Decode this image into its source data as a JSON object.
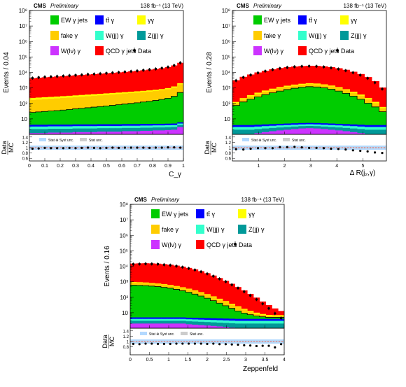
{
  "colors": {
    "qcd": "#ff0000",
    "ew": "#00cc00",
    "fake": "#ffcc00",
    "diphoton": "#ffff00",
    "ttbar": "#0000ff",
    "wjj": "#33ffcc",
    "zjj": "#009999",
    "wlnu": "#cc33ff",
    "ratio_band": "#b3d9ff",
    "ratio_band_stat": "#cccccc",
    "ratio_line": "#ff0000",
    "edge": "#000000"
  },
  "legend_labels": {
    "ew": "EW γ jets",
    "ttbar": "tt̄ γ",
    "diphoton": "γγ",
    "fake": "fake γ",
    "wjj": "W(jj) γ",
    "zjj": "Z(jj) γ",
    "wlnu": "W(lν) γ",
    "qcd": "QCD γ jets",
    "data": "Data",
    "band_syst": "Stat ⊕ Syst unc.",
    "band_stat": "Stat unc."
  },
  "chart_data": [
    {
      "type": "area",
      "stacked": true,
      "log_scale": true,
      "cms_label": "CMS",
      "preliminary_label": "Preliminary",
      "lumi_label": "138 fb⁻¹ (13 TeV)",
      "ylabel": "Events / 0.04",
      "ratio_ylabel_top": "Data",
      "ratio_ylabel_bottom": "MC",
      "xlabel": "C_γ",
      "xlim": [
        0,
        1.0
      ],
      "x_ticks": [
        "0",
        "0.1",
        "0.2",
        "0.3",
        "0.4",
        "0.5",
        "0.6",
        "0.7",
        "0.8",
        "0.9",
        "1"
      ],
      "y_ticks": [
        "10",
        "10²",
        "10³",
        "10⁴",
        "10⁵",
        "10⁶",
        "10⁷",
        "10⁸"
      ],
      "ratio_ticks": [
        "0.6",
        "0.8",
        "1",
        "1.2",
        "1.4"
      ],
      "ylim": [
        1,
        100000000
      ],
      "ratio_ylim": [
        0.5,
        1.5
      ],
      "x": [
        0.02,
        0.06,
        0.1,
        0.14,
        0.18,
        0.22,
        0.26,
        0.3,
        0.34,
        0.38,
        0.42,
        0.46,
        0.5,
        0.54,
        0.58,
        0.62,
        0.66,
        0.7,
        0.74,
        0.78,
        0.82,
        0.86,
        0.9,
        0.94,
        0.98
      ],
      "series": [
        {
          "key": "wlnu",
          "values": [
            1.2,
            1.2,
            1.2,
            1.3,
            1.3,
            1.3,
            1.3,
            1.4,
            1.4,
            1.4,
            1.4,
            1.5,
            1.5,
            1.5,
            1.5,
            1.6,
            1.6,
            1.6,
            1.7,
            1.7,
            1.8,
            1.8,
            1.9,
            2,
            3
          ]
        },
        {
          "key": "zjj",
          "values": [
            1,
            1,
            1,
            1,
            1,
            1,
            1,
            1,
            1,
            1,
            1,
            1,
            1,
            1,
            1,
            1,
            1,
            1,
            1,
            1,
            1,
            1,
            1,
            1,
            1
          ]
        },
        {
          "key": "wjj",
          "values": [
            1,
            1,
            1,
            1,
            1,
            1,
            1,
            1,
            1,
            1,
            1,
            1,
            1,
            1,
            1,
            1,
            1,
            1,
            1,
            1,
            1,
            1,
            1,
            1,
            1
          ]
        },
        {
          "key": "ttbar",
          "values": [
            1,
            1,
            1,
            1,
            1,
            1,
            1,
            1,
            1,
            1,
            1,
            1,
            1,
            1,
            1,
            1,
            1,
            1,
            1,
            1,
            1,
            1,
            1,
            1,
            1
          ]
        },
        {
          "key": "ew",
          "values": [
            22,
            24,
            26,
            28,
            30,
            33,
            36,
            40,
            44,
            48,
            53,
            58,
            64,
            70,
            78,
            86,
            95,
            105,
            118,
            132,
            150,
            175,
            210,
            280,
            500
          ]
        },
        {
          "key": "fake",
          "values": [
            140,
            148,
            156,
            165,
            175,
            186,
            198,
            210,
            224,
            238,
            252,
            268,
            285,
            302,
            320,
            340,
            362,
            386,
            412,
            440,
            475,
            520,
            600,
            760,
            1200
          ]
        },
        {
          "key": "diphoton",
          "values": [
            60,
            62,
            64,
            66,
            68,
            70,
            72,
            75,
            78,
            81,
            84,
            87,
            90,
            94,
            98,
            102,
            106,
            110,
            115,
            120,
            128,
            138,
            160,
            200,
            300
          ]
        },
        {
          "key": "qcd",
          "values": [
            4000,
            4300,
            4600,
            4900,
            5200,
            5500,
            5900,
            6200,
            6600,
            7000,
            7400,
            7900,
            8400,
            9000,
            9600,
            10300,
            11100,
            12000,
            13200,
            14500,
            16000,
            18000,
            21000,
            27000,
            40000
          ]
        }
      ],
      "data_points": [
        4300,
        4700,
        5100,
        5300,
        5600,
        5900,
        6300,
        6600,
        7000,
        7500,
        7900,
        8400,
        8900,
        9600,
        10100,
        10900,
        11700,
        12700,
        13900,
        15200,
        16900,
        19000,
        22300,
        28500,
        42000
      ],
      "ratio_points": [
        0.96,
        0.97,
        0.99,
        0.98,
        0.98,
        0.98,
        0.99,
        0.98,
        0.99,
        1.0,
        0.99,
        0.98,
        0.99,
        1.0,
        0.99,
        1.0,
        1.0,
        1.0,
        1.0,
        0.99,
        1.0,
        1.0,
        1.01,
        1.01,
        1.0
      ],
      "band_syst": 0.08,
      "band_stat": 0.03
    },
    {
      "type": "area",
      "stacked": true,
      "log_scale": true,
      "cms_label": "CMS",
      "preliminary_label": "Preliminary",
      "lumi_label": "138 fb⁻¹ (13 TeV)",
      "ylabel": "Events / 0.28",
      "ratio_ylabel_top": "Data",
      "ratio_ylabel_bottom": "MC",
      "xlabel": "Δ R(j₂,γ)",
      "xlim": [
        0,
        5.9
      ],
      "x_ticks": [
        "1",
        "2",
        "3",
        "4",
        "5"
      ],
      "x_tick_values": [
        1,
        2,
        3,
        4,
        5
      ],
      "y_ticks": [
        "10",
        "10²",
        "10³",
        "10⁴",
        "10⁵",
        "10⁶",
        "10⁷",
        "10⁸"
      ],
      "ratio_ticks": [
        "0.6",
        "0.8",
        "1",
        "1.2",
        "1.4"
      ],
      "ylim": [
        1,
        100000000
      ],
      "ratio_ylim": [
        0.5,
        1.5
      ],
      "x": [
        0.14,
        0.42,
        0.7,
        0.98,
        1.26,
        1.54,
        1.82,
        2.1,
        2.38,
        2.66,
        2.94,
        3.22,
        3.5,
        3.78,
        4.06,
        4.34,
        4.62,
        4.9,
        5.18,
        5.46,
        5.74
      ],
      "series": [
        {
          "key": "wlnu",
          "values": [
            1,
            1,
            1,
            1.2,
            1.4,
            1.6,
            1.8,
            2,
            2.2,
            2.4,
            2.5,
            2.4,
            2.2,
            2,
            1.8,
            1.6,
            1.4,
            1.2,
            1,
            1,
            1
          ]
        },
        {
          "key": "zjj",
          "values": [
            1,
            1,
            1,
            1,
            1,
            1,
            1,
            1,
            1,
            1,
            1,
            1,
            1,
            1,
            1,
            1,
            1,
            1,
            1,
            1,
            1
          ]
        },
        {
          "key": "wjj",
          "values": [
            1,
            1,
            1,
            1,
            1,
            1,
            1,
            1,
            1,
            1,
            1,
            1,
            1,
            1,
            1,
            1,
            1,
            1,
            1,
            1,
            1
          ]
        },
        {
          "key": "ttbar",
          "values": [
            1,
            1,
            1,
            1,
            1,
            1,
            1,
            1,
            1,
            1,
            1,
            1,
            1,
            1,
            1,
            1,
            1,
            1,
            1,
            1,
            1
          ]
        },
        {
          "key": "ew",
          "values": [
            70,
            120,
            180,
            260,
            360,
            480,
            620,
            780,
            950,
            1100,
            1200,
            1150,
            1000,
            820,
            620,
            440,
            290,
            180,
            100,
            55,
            25
          ]
        },
        {
          "key": "fake",
          "values": [
            30,
            60,
            100,
            150,
            210,
            280,
            350,
            420,
            480,
            530,
            560,
            540,
            490,
            420,
            340,
            260,
            190,
            130,
            80,
            45,
            20
          ]
        },
        {
          "key": "diphoton",
          "values": [
            20,
            35,
            55,
            80,
            105,
            130,
            160,
            185,
            205,
            220,
            230,
            225,
            205,
            180,
            150,
            115,
            85,
            60,
            38,
            22,
            10
          ]
        },
        {
          "key": "qcd",
          "values": [
            3000,
            5000,
            7000,
            9500,
            12000,
            15000,
            18000,
            20500,
            22500,
            24000,
            25000,
            24500,
            23000,
            20500,
            17500,
            14000,
            10500,
            7500,
            4800,
            2600,
            1000
          ]
        }
      ],
      "data_points": [
        3000,
        4800,
        6900,
        9400,
        12100,
        15200,
        18300,
        21000,
        23300,
        24700,
        25400,
        24800,
        22800,
        19900,
        16700,
        13200,
        9700,
        6700,
        4200,
        2200,
        850
      ],
      "ratio_points": [
        0.94,
        0.93,
        0.96,
        0.98,
        0.98,
        0.98,
        1.02,
        1.02,
        1.03,
        1.01,
        0.99,
        0.99,
        0.98,
        0.96,
        0.95,
        0.93,
        0.9,
        0.88,
        0.86,
        0.82,
        0.8
      ],
      "band_syst": 0.08,
      "band_stat": 0.03
    },
    {
      "type": "area",
      "stacked": true,
      "log_scale": true,
      "cms_label": "CMS",
      "preliminary_label": "Preliminary",
      "lumi_label": "138 fb⁻¹ (13 TeV)",
      "ylabel": "Events / 0.16",
      "ratio_ylabel_top": "Data",
      "ratio_ylabel_bottom": "MC",
      "xlabel": "Zeppenfeld",
      "xlim": [
        0,
        4.0
      ],
      "x_ticks": [
        "0",
        "0.5",
        "1",
        "1.5",
        "2",
        "2.5",
        "3",
        "3.5",
        "4"
      ],
      "y_ticks": [
        "10",
        "10²",
        "10³",
        "10⁴",
        "10⁵",
        "10⁶",
        "10⁷",
        "10⁸"
      ],
      "ratio_ticks": [
        "0.8",
        "1",
        "1.2",
        "1.4"
      ],
      "ylim": [
        1,
        100000000
      ],
      "ratio_ylim": [
        0.5,
        1.5
      ],
      "x": [
        0.08,
        0.24,
        0.4,
        0.56,
        0.72,
        0.88,
        1.04,
        1.2,
        1.36,
        1.52,
        1.68,
        1.84,
        2.0,
        2.16,
        2.32,
        2.48,
        2.64,
        2.8,
        2.96,
        3.12,
        3.28,
        3.44,
        3.6,
        3.76,
        3.92
      ],
      "series": [
        {
          "key": "wlnu",
          "values": [
            2,
            2,
            2,
            2,
            2,
            2,
            2,
            2,
            2,
            1.8,
            1.7,
            1.6,
            1.5,
            1.4,
            1.3,
            1.2,
            1.1,
            1,
            1,
            1,
            1,
            1,
            1,
            1,
            1
          ]
        },
        {
          "key": "zjj",
          "values": [
            1,
            1,
            1,
            1,
            1,
            1,
            1,
            1,
            1,
            1,
            1,
            1,
            1,
            1,
            1,
            1,
            1,
            1,
            1,
            1,
            1,
            1,
            1,
            1,
            1
          ]
        },
        {
          "key": "wjj",
          "values": [
            1,
            1,
            1,
            1,
            1,
            1,
            1,
            1,
            1,
            1,
            1,
            1,
            1,
            1,
            1,
            1,
            1,
            1,
            1,
            1,
            1,
            1,
            1,
            1,
            1
          ]
        },
        {
          "key": "ttbar",
          "values": [
            1,
            1,
            1,
            1,
            1,
            1,
            1,
            1,
            1,
            1,
            1,
            1,
            1,
            1,
            1,
            1,
            1,
            1,
            1,
            1,
            1,
            1,
            1,
            1,
            1
          ]
        },
        {
          "key": "ew",
          "values": [
            600,
            580,
            560,
            520,
            480,
            430,
            380,
            320,
            260,
            205,
            155,
            115,
            82,
            56,
            37,
            24,
            15,
            9,
            5.5,
            3.5,
            2.2,
            1.5,
            1,
            1,
            1
          ]
        },
        {
          "key": "fake",
          "values": [
            300,
            290,
            280,
            260,
            240,
            220,
            195,
            170,
            145,
            120,
            97,
            76,
            58,
            43,
            31,
            22,
            15,
            10,
            6.5,
            4.2,
            2.7,
            1.8,
            1.2,
            1,
            1
          ]
        },
        {
          "key": "diphoton",
          "values": [
            60,
            58,
            56,
            53,
            50,
            46,
            42,
            37,
            32,
            27,
            22,
            18,
            14,
            11,
            8,
            6,
            4,
            3,
            2,
            1.5,
            1.2,
            1,
            1,
            1,
            1
          ]
        },
        {
          "key": "qcd",
          "values": [
            14000,
            14500,
            14800,
            14500,
            14000,
            13000,
            12000,
            10500,
            9000,
            7500,
            6000,
            4600,
            3400,
            2400,
            1650,
            1100,
            700,
            430,
            260,
            150,
            85,
            45,
            24,
            12,
            6
          ]
        }
      ],
      "data_points": [
        13500,
        14000,
        14500,
        14200,
        13700,
        12700,
        11700,
        10300,
        8800,
        7300,
        5800,
        4500,
        3300,
        2300,
        1550,
        1020,
        640,
        390,
        230,
        130,
        72,
        38,
        19,
        9,
        4.5
      ],
      "ratio_points": [
        0.91,
        0.9,
        0.92,
        0.92,
        0.91,
        0.91,
        0.91,
        0.92,
        0.92,
        0.92,
        0.92,
        0.92,
        0.91,
        0.92,
        0.9,
        0.9,
        0.89,
        0.88,
        0.86,
        0.85,
        0.83,
        0.84,
        0.84,
        0.78,
        0.9
      ],
      "band_syst": 0.08,
      "band_stat": 0.03
    }
  ]
}
